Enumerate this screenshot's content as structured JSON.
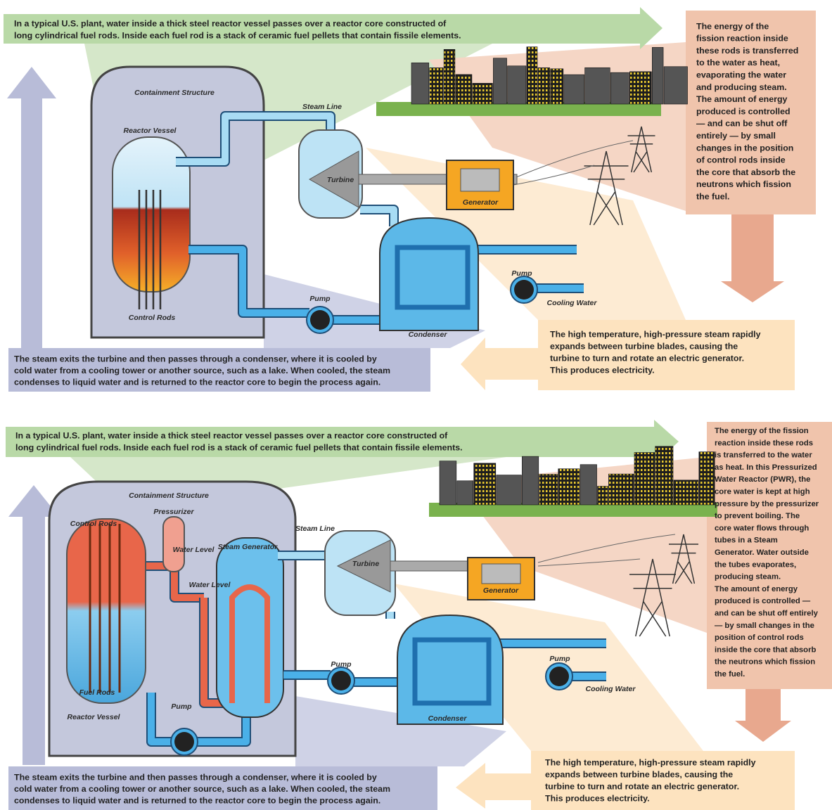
{
  "panels": [
    {
      "top_text": [
        "In a typical U.S. plant, water inside a thick steel reactor vessel passes over a reactor core constructed of",
        "long cylindrical fuel rods. Inside each fuel rod is a stack of ceramic fuel pellets that contain fissile elements."
      ],
      "side_text": [
        "The energy of the",
        "fission reaction inside",
        "these rods is transferred",
        "to the water as heat,",
        "evaporating the water",
        "and producing steam.",
        "The amount of energy",
        "produced is controlled",
        "— and can be shut off",
        "entirely — by small",
        "changes in the position",
        "of control rods inside",
        "the core that absorb the",
        "neutrons which fission",
        "the fuel."
      ],
      "right_text": [
        "The high temperature, high-pressure steam rapidly",
        "expands between turbine blades, causing the",
        "turbine to turn and rotate an electric generator.",
        "This produces electricity."
      ],
      "left_text": [
        "The steam exits the turbine and then passes through a condenser, where it is cooled by",
        "cold water from a cooling tower or another source, such as a lake. When cooled, the steam",
        "condenses to liquid water and is returned to the reactor core to begin the process again."
      ],
      "labels": [
        "Containment Structure",
        "Steam Line",
        "Reactor Vessel",
        "Turbine",
        "Generator",
        "Pump",
        "Pump",
        "Cooling Water",
        "Control Rods",
        "Condenser"
      ]
    },
    {
      "top_text": [
        "In a typical U.S. plant, water inside a thick steel reactor vessel passes over a reactor core constructed of",
        "long cylindrical fuel rods. Inside each fuel rod is a stack of ceramic fuel pellets that contain fissile elements."
      ],
      "side_text": [
        "The energy of the fission",
        "reaction inside these rods",
        "is transferred to the water",
        "as heat. In this Pressurized",
        "Water Reactor (PWR), the",
        "core water is kept at high",
        "pressure by the pressurizer",
        "to prevent boiling. The",
        "core water flows through",
        "tubes in a Steam",
        "Generator. Water outside",
        "the tubes evaporates,",
        "producing steam.",
        "The amount of energy",
        "produced is controlled —",
        "and can be shut off entirely",
        "— by small changes in the",
        "position of control rods",
        "inside the core that absorb",
        "the neutrons which fission",
        "the fuel."
      ],
      "right_text": [
        "The high temperature, high-pressure steam rapidly",
        "expands between turbine blades, causing the",
        "turbine to turn and rotate an electric generator.",
        "This produces electricity."
      ],
      "left_text": [
        "The steam exits the turbine and then passes through a condenser, where it is cooled by",
        "cold water from a cooling tower or another source, such as a lake. When cooled, the steam",
        "condenses to liquid water and is returned to the reactor core to begin the process again."
      ],
      "labels": [
        "Containment Structure",
        "Pressurizer",
        "Control Rods",
        "Water Level",
        "Water Level",
        "Steam Generator",
        "Steam Line",
        "Turbine",
        "Generator",
        "Pump",
        "Pump",
        "Pump",
        "Cooling Water",
        "Fuel Rods",
        "Reactor Vessel",
        "Condenser"
      ]
    }
  ]
}
